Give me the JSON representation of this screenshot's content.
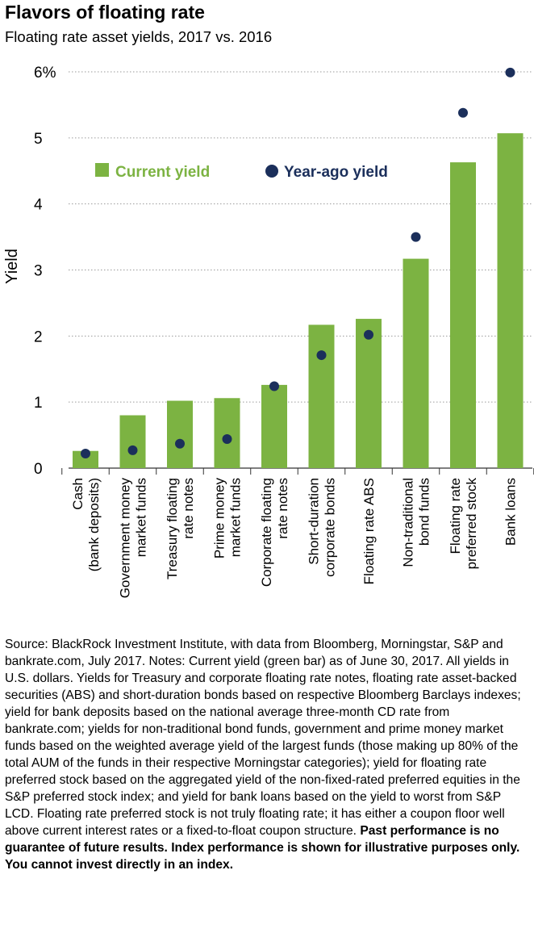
{
  "title": "Flavors of floating rate",
  "subtitle": "Floating rate asset yields, 2017 vs. 2016",
  "chart_data": {
    "type": "bar",
    "title": "Flavors of floating rate",
    "subtitle": "Floating rate asset yields, 2017 vs. 2016",
    "xlabel": "",
    "ylabel": "Yield",
    "ylim": [
      0,
      6
    ],
    "yticks": [
      "0",
      "1",
      "2",
      "3",
      "4",
      "5",
      "6%"
    ],
    "grid": "horizontal dotted",
    "legend_position": "top-left",
    "categories": [
      [
        "Cash",
        "(bank deposits)"
      ],
      [
        "Government money",
        "market funds"
      ],
      [
        "Treasury floating",
        "rate notes"
      ],
      [
        "Prime money",
        "market funds"
      ],
      [
        "Corporate floating",
        "rate notes"
      ],
      [
        "Short-duration",
        "corporate bonds"
      ],
      [
        "Floating rate ABS"
      ],
      [
        "Non-traditional",
        "bond funds"
      ],
      [
        "Floating rate",
        "preferred stock"
      ],
      [
        "Bank loans"
      ]
    ],
    "series": [
      {
        "name": "Current yield",
        "kind": "bar",
        "color": "#7cb342",
        "values": [
          0.26,
          0.8,
          1.02,
          1.06,
          1.26,
          2.17,
          2.26,
          3.17,
          4.63,
          5.07
        ]
      },
      {
        "name": "Year-ago yield",
        "kind": "dot",
        "color": "#1b2f5b",
        "values": [
          0.22,
          0.27,
          0.37,
          0.44,
          1.24,
          1.71,
          2.02,
          3.5,
          5.38,
          5.99
        ]
      }
    ]
  },
  "note": {
    "text": "Source: BlackRock Investment Institute, with data from Bloomberg, Morningstar, S&P and bankrate.com, July 2017. Notes: Current yield (green bar) as of June 30, 2017. All yields in U.S. dollars. Yields for Treasury and corporate floating rate notes, floating rate asset-backed securities (ABS) and short-duration bonds based on respective Bloomberg Barclays indexes; yield for bank deposits based on the national average three-month CD rate from bankrate.com; yields for non-traditional bond funds, government and prime money market funds based on the weighted average yield of the largest funds (those making up 80% of the total AUM of the funds in their respective Morningstar categories); yield for floating rate preferred stock based on the aggregated yield of the non-fixed-rated preferred equities in the S&P preferred stock index; and yield for bank loans based on the yield to worst from S&P LCD. Floating rate preferred stock is not truly floating rate; it has either a coupon floor well above current interest rates or a fixed-to-float coupon structure.",
    "bold": "Past performance is no guarantee of future results. Index performance is shown for illustrative purposes only. You cannot invest directly in an index."
  }
}
